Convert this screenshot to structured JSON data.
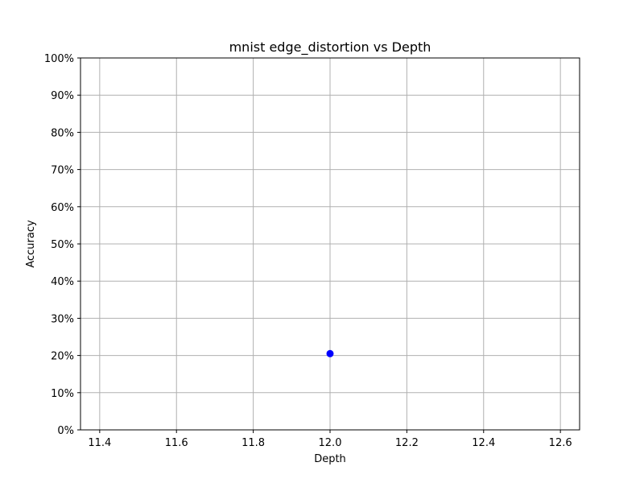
{
  "chart_data": {
    "type": "scatter",
    "title": "mnist edge_distortion vs Depth",
    "xlabel": "Depth",
    "ylabel": "Accuracy",
    "xlim": [
      11.35,
      12.65
    ],
    "ylim": [
      0,
      1
    ],
    "x_ticks": [
      11.4,
      11.6,
      11.8,
      12.0,
      12.2,
      12.4,
      12.6
    ],
    "x_tick_labels": [
      "11.4",
      "11.6",
      "11.8",
      "12.0",
      "12.2",
      "12.4",
      "12.6"
    ],
    "y_ticks": [
      0,
      0.1,
      0.2,
      0.3,
      0.4,
      0.5,
      0.6,
      0.7,
      0.8,
      0.9,
      1.0
    ],
    "y_tick_labels": [
      "0%",
      "10%",
      "20%",
      "30%",
      "40%",
      "50%",
      "60%",
      "70%",
      "80%",
      "90%",
      "100%"
    ],
    "grid": true,
    "points": [
      {
        "x": 12.0,
        "y": 0.205
      }
    ],
    "point_color": "#0000ff"
  }
}
